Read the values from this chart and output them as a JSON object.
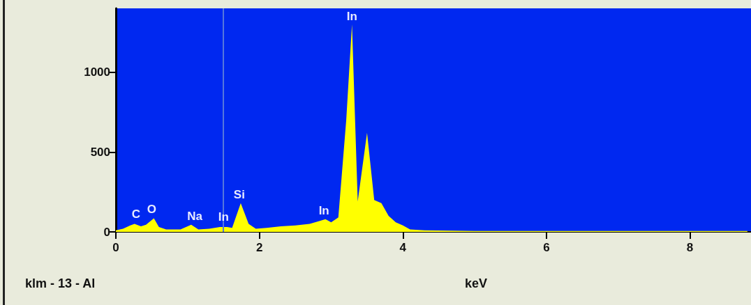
{
  "chart_data": {
    "type": "area",
    "xlabel": "keV",
    "x": [
      0,
      0.1,
      0.2,
      0.26,
      0.35,
      0.42,
      0.53,
      0.6,
      0.7,
      0.9,
      1.05,
      1.15,
      1.3,
      1.45,
      1.55,
      1.62,
      1.74,
      1.85,
      1.95,
      2.1,
      2.3,
      2.5,
      2.7,
      2.85,
      2.92,
      3.0,
      3.1,
      3.21,
      3.29,
      3.37,
      3.5,
      3.6,
      3.7,
      3.8,
      3.9,
      4.0,
      4.1,
      4.3,
      5,
      6,
      7,
      8,
      8.8
    ],
    "series": [
      {
        "color": "#ffff00",
        "values": [
          10,
          20,
          40,
          50,
          35,
          45,
          85,
          30,
          15,
          15,
          45,
          15,
          20,
          30,
          30,
          25,
          180,
          50,
          20,
          25,
          35,
          40,
          50,
          70,
          80,
          60,
          90,
          700,
          1300,
          190,
          620,
          200,
          180,
          100,
          60,
          40,
          15,
          10,
          5,
          5,
          5,
          5,
          5
        ]
      }
    ],
    "xlim": [
      0,
      8.85
    ],
    "ylim": [
      0,
      1400
    ],
    "xticks": [
      0,
      2,
      4,
      6,
      8
    ],
    "yticks": [
      0,
      500,
      1000
    ],
    "grid": false,
    "ref_lines": [
      {
        "axis": "x",
        "value": 1.5,
        "color": "#5577dd"
      }
    ],
    "annotations": [
      {
        "text": "C",
        "x": 0.28,
        "y": 60
      },
      {
        "text": "O",
        "x": 0.5,
        "y": 90
      },
      {
        "text": "Na",
        "x": 1.1,
        "y": 50
      },
      {
        "text": "In",
        "x": 1.5,
        "y": 45
      },
      {
        "text": "Si",
        "x": 1.72,
        "y": 185
      },
      {
        "text": "In",
        "x": 2.9,
        "y": 85
      },
      {
        "text": "In",
        "x": 3.29,
        "y": 1300
      },
      "klm - 13 - Al"
    ]
  }
}
